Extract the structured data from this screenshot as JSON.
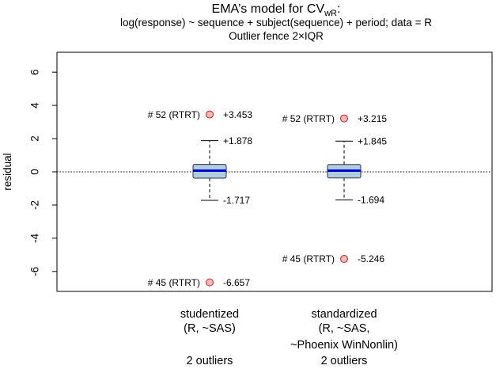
{
  "chart_data": {
    "type": "boxplot",
    "title_main": "EMA’s model for CV",
    "title_sub": "wR",
    "title_suffix": ":",
    "subtitle_lines": [
      "log(response) ~ sequence + subject(sequence) + period; data = R",
      "Outlier fence 2×IQR"
    ],
    "ylabel": "residual",
    "ylim": [
      -7.2,
      7.2
    ],
    "yticks": [
      -6,
      -4,
      -2,
      0,
      2,
      4,
      6
    ],
    "reference_line": 0,
    "colors": {
      "box_fill": "#aecde3",
      "median": "#0000cc",
      "outlier_fill": "#f5b8b8",
      "outlier_edge": "#d02020"
    },
    "groups": [
      {
        "label_lines": [
          "studentized",
          "(R, ~SAS)",
          "",
          "2 outliers"
        ],
        "q1": -0.38,
        "median": 0.07,
        "q3": 0.45,
        "whisker_low": -1.717,
        "whisker_high": 1.878,
        "whisker_low_label": "-1.717",
        "whisker_high_label": "+1.878",
        "outliers": [
          {
            "y": 3.453,
            "value_label": "+3.453",
            "id_label": "# 52 (RTRT)"
          },
          {
            "y": -6.657,
            "value_label": "-6.657",
            "id_label": "# 45 (RTRT)"
          }
        ]
      },
      {
        "label_lines": [
          "standardized",
          "(R, ~SAS,",
          "~Phoenix WinNonlin)",
          "2 outliers"
        ],
        "q1": -0.37,
        "median": 0.07,
        "q3": 0.44,
        "whisker_low": -1.694,
        "whisker_high": 1.845,
        "whisker_low_label": "-1.694",
        "whisker_high_label": "+1.845",
        "outliers": [
          {
            "y": 3.215,
            "value_label": "+3.215",
            "id_label": "# 52 (RTRT)"
          },
          {
            "y": -5.246,
            "value_label": "-5.246",
            "id_label": "# 45 (RTRT)"
          }
        ]
      }
    ]
  }
}
